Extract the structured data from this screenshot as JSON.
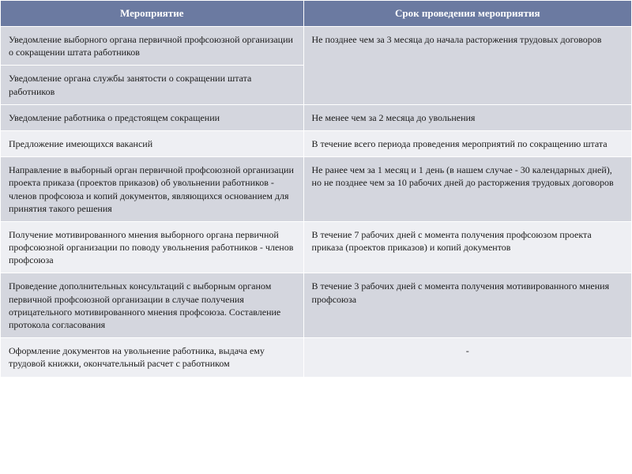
{
  "table": {
    "header_bg": "#6b7aa1",
    "header_fg": "#ffffff",
    "row_alt_bg": "#d4d6de",
    "row_plain_bg": "#eeeff3",
    "border_color": "#ffffff",
    "font_family": "Times New Roman",
    "font_size_pt": 12,
    "header_font_size_pt": 13,
    "columns": [
      {
        "label": "Мероприятие",
        "width_pct": 48
      },
      {
        "label": "Срок  проведения  мероприятия",
        "width_pct": 52
      }
    ],
    "rows": [
      {
        "alt": true,
        "cells": [
          "Уведомление  выборного органа первичной профсоюзной организации о сокращении штата  работников",
          "Не позднее чем за 3 месяца до начала расторжения трудовых договоров"
        ],
        "rowspan_col2": 2
      },
      {
        "alt": true,
        "cells": [
          "Уведомление  органа службы занятости  о сокращении штата работников"
        ]
      },
      {
        "alt": true,
        "cells": [
          "Уведомление  работника о предстоящем сокращении",
          "Не менее чем за 2 месяца до увольнения"
        ]
      },
      {
        "alt": false,
        "cells": [
          "Предложение имеющихся вакансий",
          "В течение всего периода проведения мероприятий по сокращению штата"
        ]
      },
      {
        "alt": true,
        "cells": [
          "Направление в выборный орган первичной профсоюзной организации проекта приказа (проектов приказов) об увольнении работников - членов профсоюза и копий документов, являющихся основанием для принятия такого  решения",
          "Не ранее чем за 1 месяц и 1 день (в нашем случае - 30 календарных дней), но не позднее чем за 10 рабочих дней до расторжения трудовых договоров"
        ]
      },
      {
        "alt": false,
        "cells": [
          "Получение мотивированного мнения выборного органа первичной профсоюзной организации по поводу увольнения работников - членов профсоюза",
          "В течение 7 рабочих дней с момента получения профсоюзом проекта приказа (проектов приказов) и копий документов"
        ]
      },
      {
        "alt": true,
        "cells": [
          "Проведение дополнительных  консультаций  с выборным органом первичной профсоюзной организации в случае получения отрицательного мотивированного мнения профсоюза. Составление протокола согласования",
          "В течение 3 рабочих дней с момента получения мотивированного мнения профсоюза"
        ]
      },
      {
        "alt": false,
        "cells": [
          "Оформление документов на увольнение работника, выдача ему трудовой книжки, окончательный расчет с работником",
          "-"
        ],
        "col2_center": true
      }
    ]
  }
}
